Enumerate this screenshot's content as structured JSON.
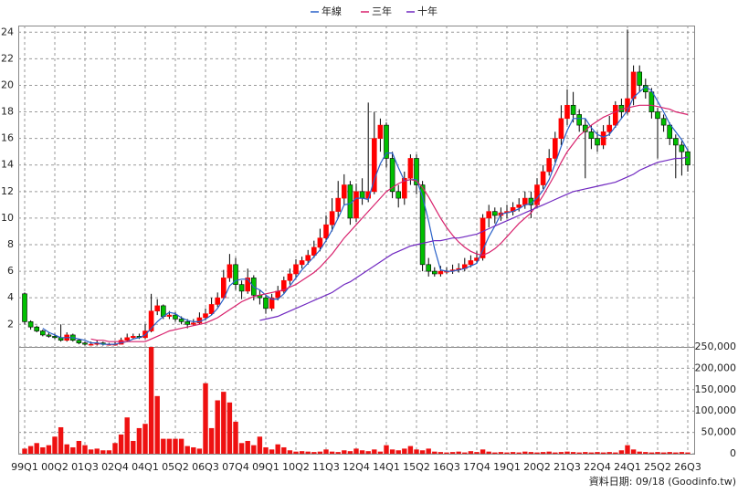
{
  "chart_data": [
    {
      "type": "candlestick",
      "up_color": "#ff0000",
      "down_color": "#00c000",
      "grid": true,
      "legend": "top",
      "ylim": [
        0.3,
        24.5
      ],
      "yticks": [
        2,
        4,
        6,
        8,
        10,
        12,
        14,
        16,
        18,
        20,
        22,
        24
      ],
      "ohlc": [
        [
          4.3,
          4.4,
          2.0,
          2.2
        ],
        [
          2.2,
          2.3,
          1.6,
          1.8
        ],
        [
          1.8,
          1.9,
          1.4,
          1.5
        ],
        [
          1.5,
          1.6,
          1.1,
          1.2
        ],
        [
          1.2,
          1.4,
          1.0,
          1.1
        ],
        [
          1.1,
          1.3,
          0.9,
          1.0
        ],
        [
          1.0,
          2.0,
          0.7,
          0.8
        ],
        [
          0.8,
          1.4,
          0.7,
          1.2
        ],
        [
          1.2,
          1.3,
          0.7,
          0.8
        ],
        [
          0.8,
          0.9,
          0.5,
          0.6
        ],
        [
          0.6,
          0.7,
          0.4,
          0.5
        ],
        [
          0.5,
          0.7,
          0.4,
          0.5
        ],
        [
          0.5,
          0.8,
          0.4,
          0.6
        ],
        [
          0.6,
          0.7,
          0.4,
          0.5
        ],
        [
          0.5,
          0.6,
          0.4,
          0.5
        ],
        [
          0.5,
          0.7,
          0.4,
          0.5
        ],
        [
          0.5,
          1.0,
          0.5,
          0.8
        ],
        [
          0.8,
          1.3,
          0.7,
          1.0
        ],
        [
          1.0,
          1.3,
          0.9,
          1.1
        ],
        [
          1.1,
          1.3,
          0.9,
          1.0
        ],
        [
          1.0,
          2.0,
          0.9,
          1.5
        ],
        [
          1.5,
          4.3,
          1.4,
          3.0
        ],
        [
          3.0,
          3.9,
          2.7,
          3.4
        ],
        [
          3.4,
          3.5,
          2.4,
          2.6
        ],
        [
          2.6,
          3.0,
          2.4,
          2.7
        ],
        [
          2.7,
          2.9,
          2.2,
          2.4
        ],
        [
          2.4,
          2.6,
          2.0,
          2.2
        ],
        [
          2.2,
          2.4,
          1.7,
          2.0
        ],
        [
          2.0,
          2.4,
          1.9,
          2.1
        ],
        [
          2.1,
          2.9,
          2.0,
          2.5
        ],
        [
          2.5,
          3.2,
          2.3,
          2.8
        ],
        [
          2.8,
          4.0,
          2.7,
          3.5
        ],
        [
          3.5,
          4.4,
          3.3,
          4.0
        ],
        [
          4.0,
          6.1,
          3.9,
          5.5
        ],
        [
          5.5,
          7.3,
          5.2,
          6.5
        ],
        [
          6.5,
          7.0,
          4.6,
          5.0
        ],
        [
          5.0,
          5.3,
          3.9,
          4.5
        ],
        [
          4.5,
          6.2,
          4.3,
          5.5
        ],
        [
          5.5,
          5.7,
          3.8,
          4.2
        ],
        [
          4.2,
          4.6,
          3.5,
          4.0
        ],
        [
          4.0,
          4.2,
          2.8,
          3.2
        ],
        [
          3.2,
          4.3,
          3.0,
          4.0
        ],
        [
          4.0,
          4.9,
          3.8,
          4.5
        ],
        [
          4.5,
          5.6,
          4.3,
          5.3
        ],
        [
          5.3,
          6.2,
          5.0,
          5.8
        ],
        [
          5.8,
          6.9,
          5.5,
          6.5
        ],
        [
          6.5,
          7.1,
          6.2,
          6.8
        ],
        [
          6.8,
          7.6,
          6.5,
          7.2
        ],
        [
          7.2,
          8.3,
          7.0,
          7.8
        ],
        [
          7.8,
          9.2,
          7.5,
          8.5
        ],
        [
          8.5,
          10.2,
          8.2,
          9.5
        ],
        [
          9.5,
          11.5,
          9.0,
          10.5
        ],
        [
          10.5,
          12.8,
          10.0,
          11.5
        ],
        [
          11.5,
          13.3,
          11.0,
          12.5
        ],
        [
          12.5,
          12.8,
          9.5,
          10.0
        ],
        [
          10.0,
          12.6,
          9.7,
          12.0
        ],
        [
          12.0,
          13.0,
          11.0,
          11.5
        ],
        [
          11.5,
          18.7,
          11.2,
          12.0
        ],
        [
          12.0,
          18.0,
          11.8,
          16.0
        ],
        [
          16.0,
          17.5,
          15.0,
          17.0
        ],
        [
          17.0,
          17.2,
          13.8,
          14.5
        ],
        [
          14.5,
          15.0,
          11.5,
          12.0
        ],
        [
          12.0,
          12.5,
          10.8,
          11.5
        ],
        [
          11.5,
          13.5,
          11.0,
          13.0
        ],
        [
          13.0,
          14.8,
          12.5,
          14.5
        ],
        [
          14.5,
          14.8,
          11.8,
          12.5
        ],
        [
          12.5,
          12.8,
          6.0,
          6.5
        ],
        [
          6.5,
          7.0,
          5.6,
          6.0
        ],
        [
          6.0,
          6.3,
          5.6,
          5.8
        ],
        [
          5.8,
          6.4,
          5.6,
          6.0
        ],
        [
          6.0,
          6.3,
          5.8,
          6.0
        ],
        [
          6.0,
          6.5,
          5.8,
          6.1
        ],
        [
          6.1,
          6.6,
          5.9,
          6.2
        ],
        [
          6.2,
          7.0,
          6.0,
          6.5
        ],
        [
          6.5,
          7.2,
          6.3,
          6.8
        ],
        [
          6.8,
          7.5,
          6.6,
          7.0
        ],
        [
          7.0,
          10.3,
          6.8,
          10.0
        ],
        [
          10.0,
          11.0,
          9.3,
          10.5
        ],
        [
          10.5,
          10.8,
          9.6,
          10.2
        ],
        [
          10.2,
          10.8,
          9.8,
          10.4
        ],
        [
          10.4,
          11.0,
          10.0,
          10.5
        ],
        [
          10.5,
          11.2,
          10.2,
          10.8
        ],
        [
          10.8,
          11.5,
          10.5,
          11.0
        ],
        [
          11.0,
          12.0,
          10.7,
          11.5
        ],
        [
          11.5,
          12.0,
          10.0,
          11.0
        ],
        [
          11.0,
          13.0,
          10.8,
          12.5
        ],
        [
          12.5,
          14.0,
          12.2,
          13.5
        ],
        [
          13.5,
          15.2,
          13.2,
          14.5
        ],
        [
          14.5,
          16.5,
          14.2,
          16.0
        ],
        [
          16.0,
          18.5,
          15.5,
          17.5
        ],
        [
          17.5,
          19.7,
          17.0,
          18.5
        ],
        [
          18.5,
          19.5,
          17.2,
          17.8
        ],
        [
          17.8,
          18.2,
          16.5,
          17.0
        ],
        [
          17.0,
          17.5,
          13.0,
          16.5
        ],
        [
          16.5,
          17.0,
          15.2,
          16.0
        ],
        [
          16.0,
          16.5,
          15.0,
          15.5
        ],
        [
          15.5,
          17.0,
          15.2,
          16.5
        ],
        [
          16.5,
          17.7,
          16.2,
          17.0
        ],
        [
          17.0,
          18.8,
          16.8,
          18.5
        ],
        [
          18.5,
          19.0,
          17.5,
          18.0
        ],
        [
          18.0,
          24.2,
          17.8,
          19.0
        ],
        [
          19.0,
          21.5,
          18.5,
          21.0
        ],
        [
          21.0,
          21.5,
          19.5,
          20.0
        ],
        [
          20.0,
          20.5,
          19.0,
          19.5
        ],
        [
          19.5,
          19.8,
          17.5,
          18.0
        ],
        [
          18.0,
          18.3,
          14.5,
          17.5
        ],
        [
          17.5,
          17.8,
          16.5,
          17.0
        ],
        [
          17.0,
          17.2,
          15.5,
          16.0
        ],
        [
          16.0,
          16.3,
          13.0,
          15.5
        ],
        [
          15.5,
          15.8,
          13.2,
          15.0
        ],
        [
          15.0,
          15.2,
          13.5,
          14.0
        ]
      ],
      "series": [
        {
          "name": "年線",
          "color": "#2860c8",
          "values": [
            null,
            null,
            null,
            1.7,
            1.4,
            1.2,
            1.0,
            1.0,
            1.0,
            0.9,
            0.8,
            0.6,
            0.6,
            0.5,
            0.5,
            0.5,
            0.6,
            0.7,
            0.9,
            1.0,
            1.2,
            1.7,
            2.2,
            2.6,
            2.9,
            2.8,
            2.5,
            2.3,
            2.2,
            2.2,
            2.4,
            2.7,
            3.2,
            3.9,
            4.9,
            5.3,
            5.4,
            5.4,
            4.8,
            4.6,
            4.2,
            3.9,
            3.9,
            4.3,
            4.9,
            5.5,
            6.1,
            6.6,
            7.1,
            7.6,
            8.3,
            9.1,
            10.0,
            11.0,
            11.1,
            11.5,
            11.5,
            11.4,
            12.9,
            14.1,
            14.9,
            14.9,
            13.8,
            12.8,
            12.9,
            12.9,
            11.6,
            9.8,
            7.7,
            6.1,
            6.0,
            6.0,
            6.1,
            6.2,
            6.4,
            6.6,
            7.6,
            8.6,
            9.4,
            10.3,
            10.4,
            10.5,
            10.7,
            11.0,
            11.1,
            11.5,
            12.1,
            12.9,
            14.1,
            15.4,
            16.6,
            17.5,
            17.5,
            17.5,
            16.8,
            16.3,
            16.1,
            16.3,
            16.9,
            17.5,
            18.1,
            19.1,
            19.5,
            19.9,
            19.6,
            18.8,
            18.0,
            17.1,
            16.5,
            15.9,
            15.1
          ]
        },
        {
          "name": "三年",
          "color": "#d8206c",
          "values": [
            null,
            null,
            null,
            null,
            null,
            null,
            null,
            null,
            null,
            null,
            null,
            0.9,
            0.8,
            0.8,
            0.7,
            0.7,
            0.7,
            0.7,
            0.7,
            0.7,
            0.7,
            0.9,
            1.1,
            1.3,
            1.5,
            1.6,
            1.7,
            1.8,
            1.9,
            2.0,
            2.1,
            2.3,
            2.5,
            2.8,
            3.1,
            3.4,
            3.7,
            3.9,
            4.1,
            4.2,
            4.3,
            4.4,
            4.5,
            4.6,
            4.8,
            5.0,
            5.3,
            5.6,
            5.9,
            6.3,
            6.8,
            7.3,
            7.9,
            8.5,
            9.0,
            9.5,
            10.0,
            10.5,
            11.0,
            11.5,
            12.0,
            12.3,
            12.6,
            12.8,
            12.9,
            12.8,
            12.3,
            11.6,
            10.8,
            10.0,
            9.3,
            8.7,
            8.2,
            7.8,
            7.5,
            7.3,
            7.2,
            7.4,
            7.7,
            8.1,
            8.6,
            9.1,
            9.6,
            10.0,
            10.4,
            11.0,
            11.7,
            12.5,
            13.3,
            14.2,
            15.0,
            15.6,
            16.2,
            16.6,
            17.0,
            17.3,
            17.6,
            17.8,
            18.0,
            18.2,
            18.3,
            18.4,
            18.5,
            18.5,
            18.5,
            18.4,
            18.3,
            18.2,
            18.0,
            17.9,
            17.8
          ]
        },
        {
          "name": "十年",
          "color": "#7028c0",
          "values": [
            null,
            null,
            null,
            null,
            null,
            null,
            null,
            null,
            null,
            null,
            null,
            null,
            null,
            null,
            null,
            null,
            null,
            null,
            null,
            null,
            null,
            null,
            null,
            null,
            null,
            null,
            null,
            null,
            null,
            null,
            null,
            null,
            null,
            null,
            null,
            null,
            null,
            null,
            null,
            2.3,
            2.4,
            2.5,
            2.6,
            2.8,
            3.0,
            3.2,
            3.4,
            3.6,
            3.8,
            4.0,
            4.2,
            4.4,
            4.7,
            5.0,
            5.2,
            5.5,
            5.8,
            6.1,
            6.4,
            6.7,
            7.0,
            7.3,
            7.5,
            7.7,
            7.9,
            8.0,
            8.1,
            8.2,
            8.3,
            8.3,
            8.4,
            8.5,
            8.5,
            8.6,
            8.7,
            8.8,
            9.0,
            9.2,
            9.4,
            9.6,
            9.8,
            10.0,
            10.2,
            10.4,
            10.6,
            10.8,
            11.0,
            11.2,
            11.4,
            11.6,
            11.8,
            12.0,
            12.1,
            12.2,
            12.3,
            12.4,
            12.5,
            12.6,
            12.7,
            12.9,
            13.1,
            13.3,
            13.6,
            13.8,
            14.0,
            14.2,
            14.3,
            14.4,
            14.5,
            14.5,
            14.6
          ]
        }
      ]
    },
    {
      "type": "bar",
      "color": "#ee1111",
      "grid": true,
      "ylim": [
        0,
        250000
      ],
      "yticks": [
        {
          "value": 0,
          "label": "0"
        },
        {
          "value": 50000,
          "label": "50,000"
        },
        {
          "value": 100000,
          "label": "100,000"
        },
        {
          "value": 150000,
          "label": "150,000"
        },
        {
          "value": 200000,
          "label": "200,000"
        },
        {
          "value": 250000,
          "label": "250,000"
        }
      ],
      "categories": [
        "99Q1",
        null,
        null,
        null,
        null,
        "00Q2",
        null,
        null,
        null,
        null,
        "01Q3",
        null,
        null,
        null,
        null,
        "02Q4",
        null,
        null,
        null,
        null,
        "04Q1",
        null,
        null,
        null,
        null,
        "05Q2",
        null,
        null,
        null,
        null,
        "06Q3",
        null,
        null,
        null,
        null,
        "07Q4",
        null,
        null,
        null,
        null,
        "09Q1",
        null,
        null,
        null,
        null,
        "10Q2",
        null,
        null,
        null,
        null,
        "11Q3",
        null,
        null,
        null,
        null,
        "12Q4",
        null,
        null,
        null,
        null,
        "14Q1",
        null,
        null,
        null,
        null,
        "15Q2",
        null,
        null,
        null,
        null,
        "16Q3",
        null,
        null,
        null,
        null,
        "17Q4",
        null,
        null,
        null,
        null,
        "19Q1",
        null,
        null,
        null,
        null,
        "20Q2",
        null,
        null,
        null,
        null,
        "21Q3",
        null,
        null,
        null,
        null,
        "22Q4",
        null,
        null,
        null,
        null,
        "24Q1",
        null,
        null,
        null,
        null,
        "25Q2",
        null,
        null,
        null,
        null,
        "26Q3"
      ],
      "values": [
        12000,
        18000,
        25000,
        15000,
        20000,
        40000,
        62000,
        22000,
        15000,
        30000,
        20000,
        10000,
        12000,
        8000,
        8000,
        25000,
        45000,
        85000,
        30000,
        60000,
        70000,
        250000,
        135000,
        35000,
        35000,
        35000,
        35000,
        18000,
        15000,
        12000,
        165000,
        60000,
        125000,
        145000,
        120000,
        75000,
        25000,
        30000,
        20000,
        40000,
        15000,
        10000,
        22000,
        15000,
        8000,
        5000,
        6000,
        5000,
        4000,
        5000,
        10000,
        5000,
        4000,
        8000,
        6000,
        12000,
        8000,
        6000,
        10000,
        5000,
        20000,
        10000,
        8000,
        12000,
        18000,
        10000,
        8000,
        12000,
        5000,
        4000,
        3000,
        4000,
        5000,
        3000,
        6000,
        4000,
        10000,
        5000,
        3000,
        4000,
        3000,
        4000,
        3000,
        5000,
        4000,
        3000,
        4000,
        5000,
        3000,
        4000,
        5000,
        4000,
        3000,
        4000,
        3000,
        4000,
        3000,
        4000,
        3000,
        8000,
        20000,
        10000,
        5000,
        4000,
        3000,
        4000,
        3000,
        4000,
        3000,
        4000,
        3000
      ],
      "source": "資料日期: 09/18 (Goodinfo.tw)"
    }
  ]
}
